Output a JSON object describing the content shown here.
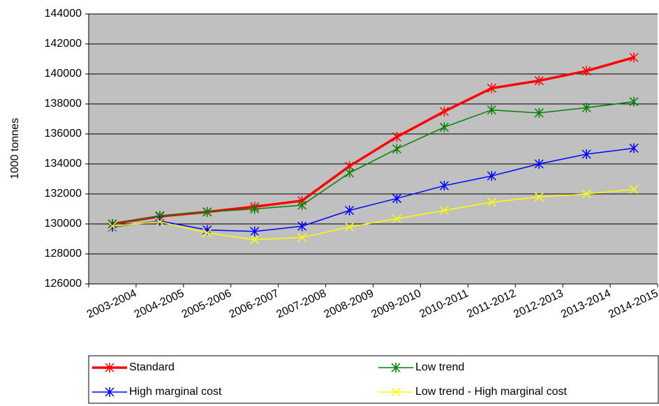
{
  "chart_data": {
    "type": "line",
    "y_label": "1000 tonnes",
    "categories": [
      "2003-2004",
      "2004-2005",
      "2005-2006",
      "2006-2007",
      "2007-2008",
      "2008-2009",
      "2009-2010",
      "2010-2011",
      "2011-2012",
      "2012-2013",
      "2013-2014",
      "2014-2015"
    ],
    "series": [
      {
        "name": "Standard",
        "color": "#ff0000",
        "line_width": 3.5,
        "marker": "asterisk",
        "values": [
          130000,
          130500,
          130800,
          131150,
          131550,
          133850,
          135800,
          137500,
          139050,
          139550,
          140200,
          141100
        ]
      },
      {
        "name": "Low trend",
        "color": "#008000",
        "line_width": 1.5,
        "marker": "asterisk",
        "values": [
          130000,
          130550,
          130800,
          131000,
          131250,
          133400,
          135000,
          136450,
          137600,
          137400,
          137750,
          138150
        ]
      },
      {
        "name": "High marginal cost",
        "color": "#0000ff",
        "line_width": 1.5,
        "marker": "asterisk",
        "values": [
          129800,
          130200,
          129600,
          129500,
          129850,
          130900,
          131700,
          132550,
          133200,
          134000,
          134650,
          135050
        ]
      },
      {
        "name": "Low trend - High marginal cost",
        "color": "#ffff00",
        "line_width": 1.5,
        "marker": "x",
        "values": [
          129850,
          130150,
          129400,
          128950,
          129100,
          129800,
          130350,
          130900,
          131450,
          131800,
          132000,
          132300
        ]
      }
    ],
    "ylim": [
      126000,
      144000
    ],
    "yticks": [
      126000,
      128000,
      130000,
      132000,
      134000,
      136000,
      138000,
      140000,
      142000,
      144000
    ],
    "grid": true,
    "plot_background": "#c0c0c0",
    "legend": "bottom"
  }
}
